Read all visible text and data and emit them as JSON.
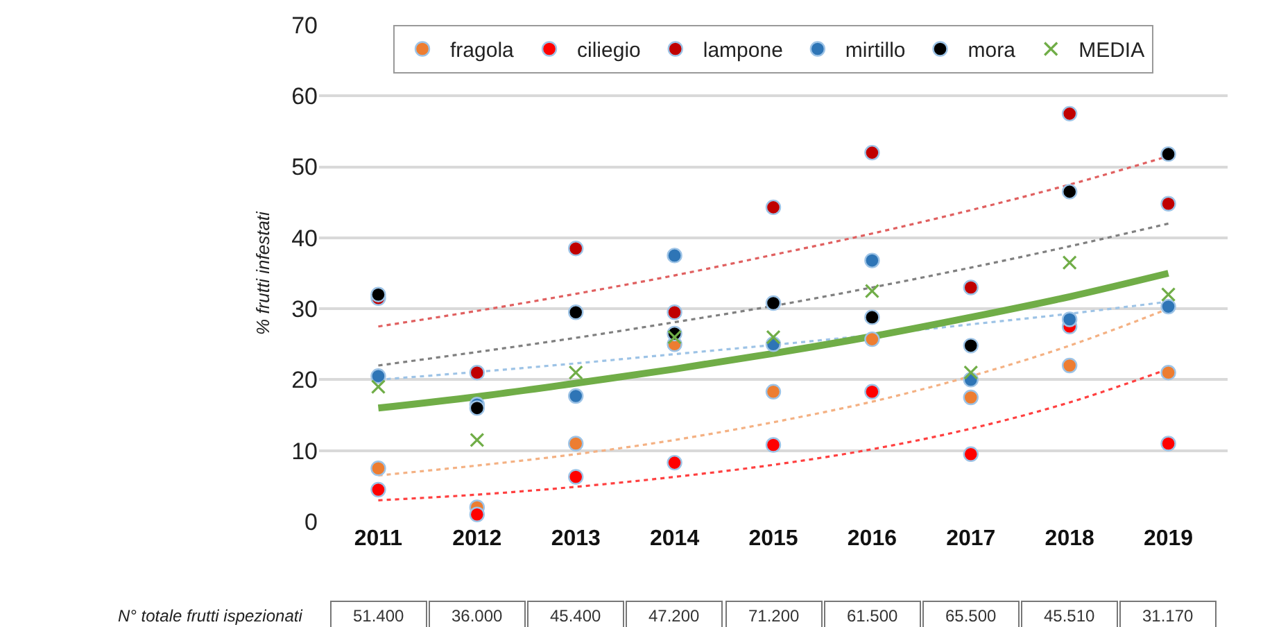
{
  "chart_data": {
    "type": "scatter",
    "ylabel": "% frutti infestati",
    "categories": [
      "2011",
      "2012",
      "2013",
      "2014",
      "2015",
      "2016",
      "2017",
      "2018",
      "2019"
    ],
    "ylim": [
      0,
      70
    ],
    "yticks": [
      0,
      10,
      20,
      30,
      40,
      50,
      60,
      70
    ],
    "grid": "y",
    "legend": "top",
    "marker": "circle",
    "series": [
      {
        "name": "fragola",
        "color": "#ed7d31",
        "values": [
          7.5,
          2,
          11,
          25,
          18.3,
          25.7,
          17.5,
          22,
          21
        ]
      },
      {
        "name": "ciliegio",
        "color": "#ff0000",
        "values": [
          4.5,
          1,
          6.3,
          8.3,
          10.8,
          18.3,
          9.5,
          27.5,
          11
        ]
      },
      {
        "name": "lampone",
        "color": "#c00000",
        "values": [
          31.5,
          21,
          38.5,
          29.5,
          44.3,
          52,
          33,
          57.5,
          44.8
        ]
      },
      {
        "name": "mirtillo",
        "color": "#2e75b6",
        "values": [
          20.5,
          16.5,
          17.7,
          37.5,
          25,
          36.8,
          20,
          28.5,
          30.3
        ]
      },
      {
        "name": "mora",
        "color": "#000000",
        "values": [
          32,
          16,
          29.5,
          26.5,
          30.8,
          28.8,
          24.8,
          46.5,
          51.8
        ]
      },
      {
        "name": "MEDIA",
        "color": "#70ad47",
        "marker": "cross",
        "values": [
          19,
          11.5,
          21,
          26,
          26,
          32.5,
          21,
          36.5,
          32
        ]
      },
      {
        "type": "line",
        "marker": "none",
        "color": "#f4b183",
        "line_style": "dotted",
        "values": [
          6.5,
          7.9,
          9.5,
          11.5,
          14,
          16.9,
          20.5,
          24.8,
          30
        ]
      },
      {
        "type": "line",
        "marker": "none",
        "color": "#ff4040",
        "line_style": "dotted",
        "values": [
          3,
          3.8,
          4.9,
          6.3,
          8,
          10.2,
          13.1,
          16.8,
          21.5
        ]
      },
      {
        "type": "line",
        "marker": "none",
        "color": "#e06060",
        "line_style": "dotted",
        "values": [
          27.5,
          29.7,
          32.1,
          34.7,
          37.6,
          40.6,
          43.9,
          47.5,
          51.5
        ]
      },
      {
        "type": "line",
        "marker": "none",
        "color": "#9dc3e6",
        "line_style": "dotted",
        "values": [
          20,
          21.1,
          22.3,
          23.6,
          24.9,
          26.3,
          27.8,
          29.3,
          31
        ]
      },
      {
        "type": "line",
        "marker": "none",
        "color": "#808080",
        "line_style": "dotted",
        "values": [
          22,
          23.9,
          25.9,
          28.1,
          30.4,
          33,
          35.8,
          38.8,
          42
        ]
      },
      {
        "type": "line",
        "marker": "none",
        "color": "#70ad47",
        "line_style": "solid",
        "values": [
          16,
          17.6,
          19.5,
          21.5,
          23.7,
          26.1,
          28.8,
          31.7,
          35
        ]
      }
    ],
    "annotations": [
      "N° totale frutti ispezionati",
      "51.400",
      "36.000",
      "45.400",
      "47.200",
      "71.200",
      "61.500",
      "65.500",
      "45.510",
      "31.170"
    ]
  }
}
